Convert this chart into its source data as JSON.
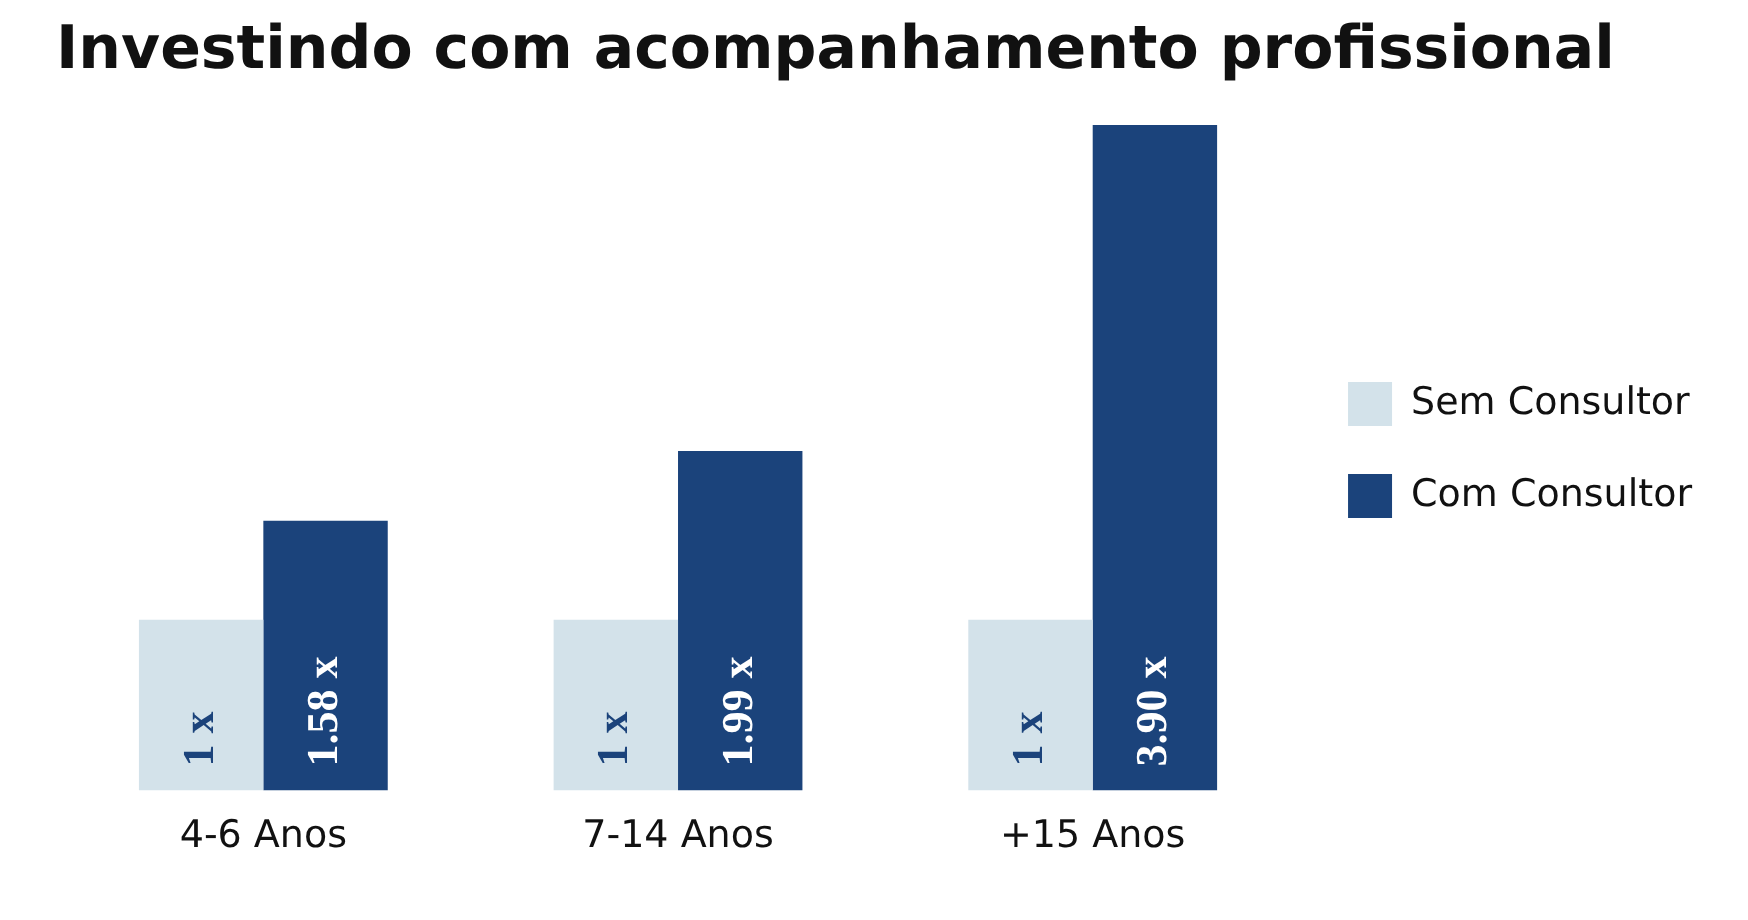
{
  "chart_data": {
    "type": "bar",
    "title": "Investindo com acompanhamento profissional",
    "categories": [
      "4-6 Anos",
      "7-14 Anos",
      "+15 Anos"
    ],
    "series": [
      {
        "name": "Sem Consultor",
        "color": "#d3e2ea",
        "values": [
          1,
          1,
          1
        ],
        "value_labels": [
          "1 x",
          "1 x",
          "1 x"
        ]
      },
      {
        "name": "Com Consultor",
        "color": "#1b437b",
        "values": [
          1.58,
          1.99,
          3.9
        ],
        "value_labels": [
          "1.58 x",
          "1.99 x",
          "3.90 x"
        ]
      }
    ],
    "legend": "right",
    "grid": false
  }
}
